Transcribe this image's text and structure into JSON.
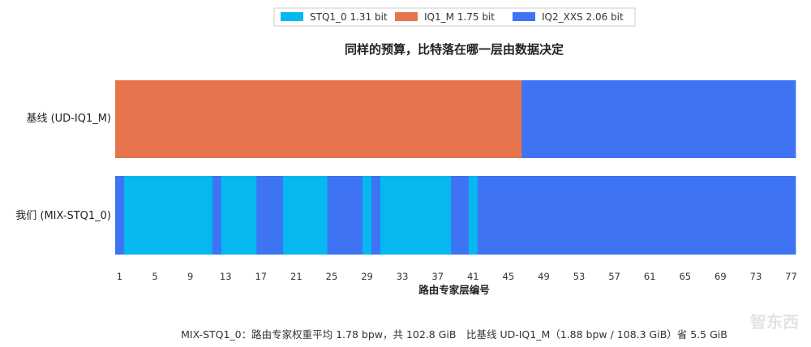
{
  "chart_data": {
    "type": "bar",
    "orientation": "horizontal-stacked-segments",
    "title": "同样的预算，比特落在哪一层由数据决定",
    "xlabel": "路由专家层编号",
    "categories": [
      "基线 (UD-IQ1_M)",
      "我们 (MIX-STQ1_0)"
    ],
    "x_ticks": [
      "1",
      "5",
      "9",
      "13",
      "17",
      "21",
      "25",
      "29",
      "33",
      "37",
      "41",
      "45",
      "49",
      "53",
      "57",
      "61",
      "65",
      "69",
      "73",
      "77"
    ],
    "xlim": [
      1,
      77
    ],
    "legend": {
      "placement": "top-center",
      "entries": [
        {
          "key": "STQ1_0",
          "label": "STQ1_0  1.31 bit",
          "color": "#05b8f0"
        },
        {
          "key": "IQ1_M",
          "label": "IQ1_M  1.75 bit",
          "color": "#e6754d"
        },
        {
          "key": "IQ2_XXS",
          "label": "IQ2_XXS  2.06 bit",
          "color": "#3e74f4"
        }
      ]
    },
    "series": [
      {
        "row": "基线 (UD-IQ1_M)",
        "segments": [
          {
            "start": 1,
            "end": 46,
            "type": "IQ1_M"
          },
          {
            "start": 47,
            "end": 77,
            "type": "IQ2_XXS"
          }
        ]
      },
      {
        "row": "我们 (MIX-STQ1_0)",
        "segments": [
          {
            "start": 1,
            "end": 1,
            "type": "IQ2_XXS"
          },
          {
            "start": 2,
            "end": 11,
            "type": "STQ1_0"
          },
          {
            "start": 12,
            "end": 12,
            "type": "IQ2_XXS"
          },
          {
            "start": 13,
            "end": 16,
            "type": "STQ1_0"
          },
          {
            "start": 17,
            "end": 19,
            "type": "IQ2_XXS"
          },
          {
            "start": 20,
            "end": 24,
            "type": "STQ1_0"
          },
          {
            "start": 25,
            "end": 28,
            "type": "IQ2_XXS"
          },
          {
            "start": 29,
            "end": 29,
            "type": "STQ1_0"
          },
          {
            "start": 30,
            "end": 30,
            "type": "IQ2_XXS"
          },
          {
            "start": 31,
            "end": 38,
            "type": "STQ1_0"
          },
          {
            "start": 39,
            "end": 40,
            "type": "IQ2_XXS"
          },
          {
            "start": 41,
            "end": 41,
            "type": "STQ1_0"
          },
          {
            "start": 42,
            "end": 77,
            "type": "IQ2_XXS"
          }
        ]
      }
    ]
  },
  "footer": "MIX-STQ1_0：路由专家权重平均 1.78 bpw，共 102.8 GiB　比基线 UD-IQ1_M（1.88 bpw / 108.3 GiB）省 5.5 GiB",
  "watermark": "智东西"
}
